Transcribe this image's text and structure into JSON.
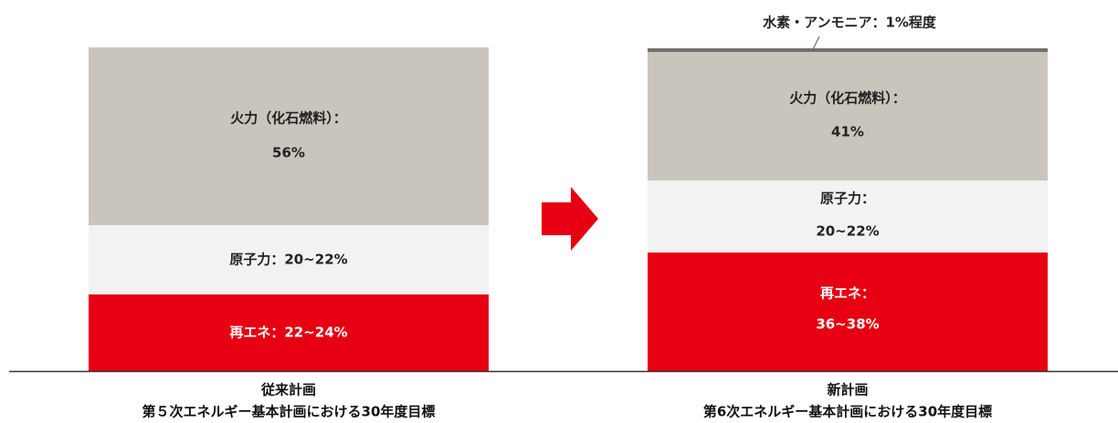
{
  "left": {
    "fossil": [
      "火力（化石燃料）：",
      "56%"
    ],
    "nuclear": [
      "原子力：20~22%"
    ],
    "renewable": [
      "再エネ：22~24%"
    ],
    "caption": [
      "従来計画",
      "第５次エネルギー基本計画における30年度目標"
    ]
  },
  "right": {
    "hydrogen": "水素・アンモニア：1%程度",
    "fossil": [
      "火力（化石燃料）：",
      "41%"
    ],
    "nuclear": [
      "原子力：",
      "20~22%"
    ],
    "renewable": [
      "再エネ：",
      "36~38%"
    ],
    "caption": [
      "新計画",
      "第6次エネルギー基本計画における30年度目標"
    ]
  }
}
